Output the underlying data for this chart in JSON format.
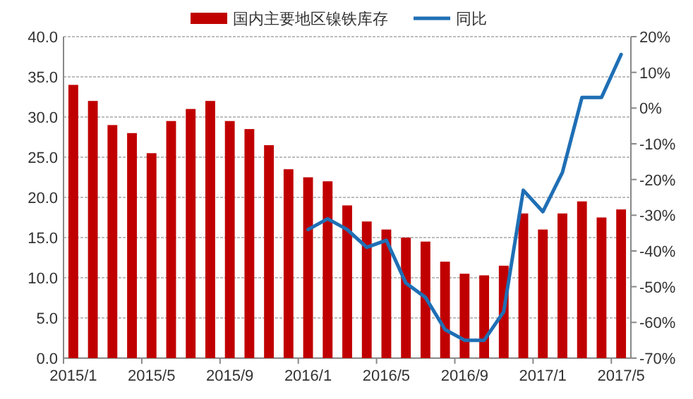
{
  "chart_data": {
    "type": "bar",
    "categories": [
      "2015/1",
      null,
      null,
      null,
      "2015/5",
      null,
      null,
      null,
      "2015/9",
      null,
      null,
      null,
      "2016/1",
      null,
      null,
      null,
      "2016/5",
      null,
      null,
      null,
      "2016/9",
      null,
      null,
      null,
      "2017/1",
      null,
      null,
      null,
      "2017/5"
    ],
    "series": [
      {
        "name": "国内主要地区镍铁库存",
        "color": "#c00000",
        "values": [
          34,
          32,
          29,
          28,
          25.5,
          29.5,
          31,
          32,
          29.5,
          28.5,
          26.5,
          23.5,
          22.5,
          22,
          19,
          17,
          16,
          15,
          14.5,
          12,
          10.5,
          10.3,
          11.5,
          18,
          16,
          18,
          19.5,
          17.5,
          18.5
        ]
      },
      {
        "name": "同比",
        "type": "line",
        "axis": "y2",
        "color": "#1f6fb5",
        "values": [
          null,
          null,
          null,
          null,
          null,
          null,
          null,
          null,
          null,
          null,
          null,
          null,
          -34,
          -31,
          -34,
          -39,
          -37,
          -49,
          -53,
          -62,
          -65,
          -65,
          -57,
          -23,
          -29,
          -18,
          3,
          3,
          15
        ]
      }
    ],
    "ylim": [
      0,
      40
    ],
    "yticks": [
      {
        "value": 0,
        "label": "0.0"
      },
      {
        "value": 5,
        "label": "5.0"
      },
      {
        "value": 10,
        "label": "10.0"
      },
      {
        "value": 15,
        "label": "15.0"
      },
      {
        "value": 20,
        "label": "20.0"
      },
      {
        "value": 25,
        "label": "25.0"
      },
      {
        "value": 30,
        "label": "30.0"
      },
      {
        "value": 35,
        "label": "35.0"
      },
      {
        "value": 40,
        "label": "40.0"
      }
    ],
    "y2lim": [
      -70,
      20
    ],
    "y2ticks": [
      {
        "value": -70,
        "label": "-70%"
      },
      {
        "value": -60,
        "label": "-60%"
      },
      {
        "value": -50,
        "label": "-50%"
      },
      {
        "value": -40,
        "label": "-40%"
      },
      {
        "value": -30,
        "label": "-30%"
      },
      {
        "value": -20,
        "label": "-20%"
      },
      {
        "value": -10,
        "label": "-10%"
      },
      {
        "value": 0,
        "label": "0%"
      },
      {
        "value": 10,
        "label": "10%"
      },
      {
        "value": 20,
        "label": "20%"
      }
    ],
    "grid": "y",
    "legend": "top"
  }
}
